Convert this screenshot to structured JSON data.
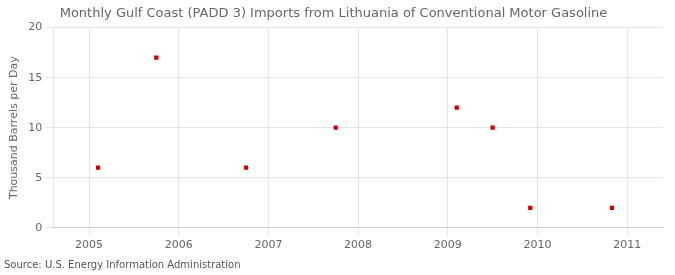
{
  "chart_data": {
    "type": "scatter",
    "title": "Monthly Gulf Coast (PADD 3) Imports from Lithuania of Conventional Motor Gasoline",
    "ylabel": "Thousand Barrels per Day",
    "source": "Source: U.S. Energy Information Administration",
    "x": [
      2005.1,
      2005.75,
      2006.75,
      2007.75,
      2009.1,
      2009.5,
      2009.92,
      2010.83
    ],
    "values": [
      6,
      17,
      6,
      10,
      12,
      10,
      2,
      2
    ],
    "color": "#cc0000",
    "marker": "square",
    "xlim": [
      2004.6,
      2011.4
    ],
    "xticks": [
      2005,
      2006,
      2007,
      2008,
      2009,
      2010,
      2011
    ],
    "ylim": [
      0,
      20
    ],
    "yticks": [
      0,
      5,
      10,
      15,
      20
    ],
    "grid": true
  }
}
